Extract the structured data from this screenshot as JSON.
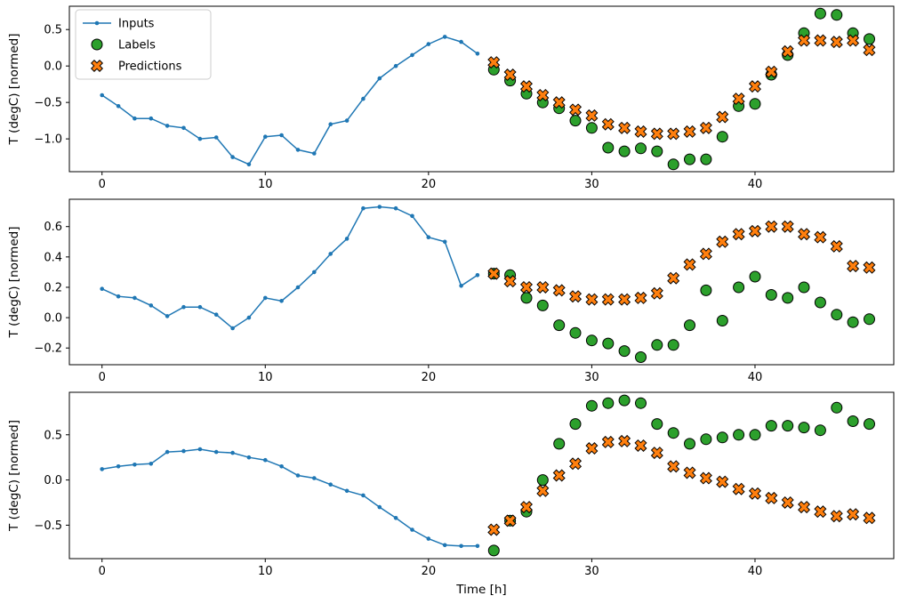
{
  "figure": {
    "xlabel": "Time [h]",
    "ylabel": "T (degC) [normed]"
  },
  "legend": {
    "position": "upper-left",
    "items": [
      "Inputs",
      "Labels",
      "Predictions"
    ]
  },
  "colors": {
    "inputs": "#1f77b4",
    "labels": "#2ca02c",
    "predictions": "#ff7f0e",
    "marker_edge": "#000000",
    "axes_edge": "#000000",
    "legend_edge": "#cccccc",
    "background": "#ffffff"
  },
  "chart_data": [
    {
      "type": "line",
      "title": "",
      "xlabel": "",
      "ylabel": "T (degC) [normed]",
      "xlim": [
        -2.0,
        48.5
      ],
      "ylim": [
        -1.45,
        0.82
      ],
      "xticks": [
        0,
        10,
        20,
        30,
        40
      ],
      "yticks": [
        -1.0,
        -0.5,
        0.0,
        0.5
      ],
      "grid": false,
      "series": [
        {
          "name": "Inputs",
          "type": "line",
          "marker": "dot",
          "color": "#1f77b4",
          "x": [
            0,
            1,
            2,
            3,
            4,
            5,
            6,
            7,
            8,
            9,
            10,
            11,
            12,
            13,
            14,
            15,
            16,
            17,
            18,
            19,
            20,
            21,
            22,
            23
          ],
          "values": [
            -0.4,
            -0.55,
            -0.72,
            -0.72,
            -0.82,
            -0.85,
            -1.0,
            -0.98,
            -1.25,
            -1.35,
            -0.97,
            -0.95,
            -1.15,
            -1.2,
            -0.8,
            -0.75,
            -0.45,
            -0.17,
            0.0,
            0.15,
            0.3,
            0.4,
            0.33,
            0.17
          ]
        },
        {
          "name": "Labels",
          "type": "scatter",
          "marker": "circle",
          "color": "#2ca02c",
          "x": [
            24,
            25,
            26,
            27,
            28,
            29,
            30,
            31,
            32,
            33,
            34,
            35,
            36,
            37,
            38,
            39,
            40,
            41,
            42,
            43,
            44,
            45,
            46,
            47
          ],
          "values": [
            -0.05,
            -0.2,
            -0.38,
            -0.5,
            -0.58,
            -0.75,
            -0.85,
            -1.12,
            -1.17,
            -1.13,
            -1.17,
            -1.35,
            -1.28,
            -1.28,
            -0.97,
            -0.55,
            -0.52,
            -0.12,
            0.15,
            0.45,
            0.72,
            0.7,
            0.45,
            0.37
          ]
        },
        {
          "name": "Predictions",
          "type": "scatter",
          "marker": "x",
          "color": "#ff7f0e",
          "x": [
            24,
            25,
            26,
            27,
            28,
            29,
            30,
            31,
            32,
            33,
            34,
            35,
            36,
            37,
            38,
            39,
            40,
            41,
            42,
            43,
            44,
            45,
            46,
            47
          ],
          "values": [
            0.05,
            -0.12,
            -0.28,
            -0.4,
            -0.5,
            -0.6,
            -0.68,
            -0.8,
            -0.85,
            -0.9,
            -0.93,
            -0.93,
            -0.9,
            -0.85,
            -0.7,
            -0.45,
            -0.28,
            -0.08,
            0.2,
            0.35,
            0.35,
            0.33,
            0.35,
            0.22
          ]
        }
      ]
    },
    {
      "type": "line",
      "title": "",
      "xlabel": "",
      "ylabel": "T (degC) [normed]",
      "xlim": [
        -2.0,
        48.5
      ],
      "ylim": [
        -0.31,
        0.78
      ],
      "xticks": [
        0,
        10,
        20,
        30,
        40
      ],
      "yticks": [
        -0.2,
        0.0,
        0.2,
        0.4,
        0.6
      ],
      "grid": false,
      "series": [
        {
          "name": "Inputs",
          "type": "line",
          "marker": "dot",
          "color": "#1f77b4",
          "x": [
            0,
            1,
            2,
            3,
            4,
            5,
            6,
            7,
            8,
            9,
            10,
            11,
            12,
            13,
            14,
            15,
            16,
            17,
            18,
            19,
            20,
            21,
            22,
            23
          ],
          "values": [
            0.19,
            0.14,
            0.13,
            0.08,
            0.01,
            0.07,
            0.07,
            0.02,
            -0.07,
            0.0,
            0.13,
            0.11,
            0.2,
            0.3,
            0.42,
            0.52,
            0.72,
            0.73,
            0.72,
            0.67,
            0.53,
            0.5,
            0.21,
            0.28
          ]
        },
        {
          "name": "Labels",
          "type": "scatter",
          "marker": "circle",
          "color": "#2ca02c",
          "x": [
            24,
            25,
            26,
            27,
            28,
            29,
            30,
            31,
            32,
            33,
            34,
            35,
            36,
            37,
            38,
            39,
            40,
            41,
            42,
            43,
            44,
            45,
            46,
            47
          ],
          "values": [
            0.29,
            0.28,
            0.13,
            0.08,
            -0.05,
            -0.1,
            -0.15,
            -0.17,
            -0.22,
            -0.26,
            -0.18,
            -0.18,
            -0.05,
            0.18,
            -0.02,
            0.2,
            0.27,
            0.15,
            0.13,
            0.2,
            0.1,
            0.02,
            -0.03,
            -0.01
          ]
        },
        {
          "name": "Predictions",
          "type": "scatter",
          "marker": "x",
          "color": "#ff7f0e",
          "x": [
            24,
            25,
            26,
            27,
            28,
            29,
            30,
            31,
            32,
            33,
            34,
            35,
            36,
            37,
            38,
            39,
            40,
            41,
            42,
            43,
            44,
            45,
            46,
            47
          ],
          "values": [
            0.29,
            0.24,
            0.2,
            0.2,
            0.18,
            0.14,
            0.12,
            0.12,
            0.12,
            0.13,
            0.16,
            0.26,
            0.35,
            0.42,
            0.5,
            0.55,
            0.57,
            0.6,
            0.6,
            0.55,
            0.53,
            0.47,
            0.34,
            0.33
          ]
        }
      ]
    },
    {
      "type": "line",
      "title": "",
      "xlabel": "Time [h]",
      "ylabel": "T (degC) [normed]",
      "xlim": [
        -2.0,
        48.5
      ],
      "ylim": [
        -0.87,
        0.97
      ],
      "xticks": [
        0,
        10,
        20,
        30,
        40
      ],
      "yticks": [
        -0.5,
        0.0,
        0.5
      ],
      "grid": false,
      "series": [
        {
          "name": "Inputs",
          "type": "line",
          "marker": "dot",
          "color": "#1f77b4",
          "x": [
            0,
            1,
            2,
            3,
            4,
            5,
            6,
            7,
            8,
            9,
            10,
            11,
            12,
            13,
            14,
            15,
            16,
            17,
            18,
            19,
            20,
            21,
            22,
            23
          ],
          "values": [
            0.12,
            0.15,
            0.17,
            0.18,
            0.31,
            0.32,
            0.34,
            0.31,
            0.3,
            0.25,
            0.22,
            0.15,
            0.05,
            0.02,
            -0.05,
            -0.12,
            -0.17,
            -0.3,
            -0.42,
            -0.55,
            -0.65,
            -0.72,
            -0.73,
            -0.73
          ]
        },
        {
          "name": "Labels",
          "type": "scatter",
          "marker": "circle",
          "color": "#2ca02c",
          "x": [
            24,
            25,
            26,
            27,
            28,
            29,
            30,
            31,
            32,
            33,
            34,
            35,
            36,
            37,
            38,
            39,
            40,
            41,
            42,
            43,
            44,
            45,
            46,
            47
          ],
          "values": [
            -0.78,
            -0.45,
            -0.35,
            0.0,
            0.4,
            0.62,
            0.82,
            0.85,
            0.88,
            0.85,
            0.62,
            0.52,
            0.4,
            0.45,
            0.47,
            0.5,
            0.5,
            0.6,
            0.6,
            0.58,
            0.55,
            0.8,
            0.65,
            0.62
          ]
        },
        {
          "name": "Predictions",
          "type": "scatter",
          "marker": "x",
          "color": "#ff7f0e",
          "x": [
            24,
            25,
            26,
            27,
            28,
            29,
            30,
            31,
            32,
            33,
            34,
            35,
            36,
            37,
            38,
            39,
            40,
            41,
            42,
            43,
            44,
            45,
            46,
            47
          ],
          "values": [
            -0.55,
            -0.45,
            -0.3,
            -0.12,
            0.05,
            0.18,
            0.35,
            0.42,
            0.43,
            0.38,
            0.3,
            0.15,
            0.08,
            0.02,
            -0.02,
            -0.1,
            -0.15,
            -0.2,
            -0.25,
            -0.3,
            -0.35,
            -0.4,
            -0.38,
            -0.42
          ]
        }
      ]
    }
  ]
}
